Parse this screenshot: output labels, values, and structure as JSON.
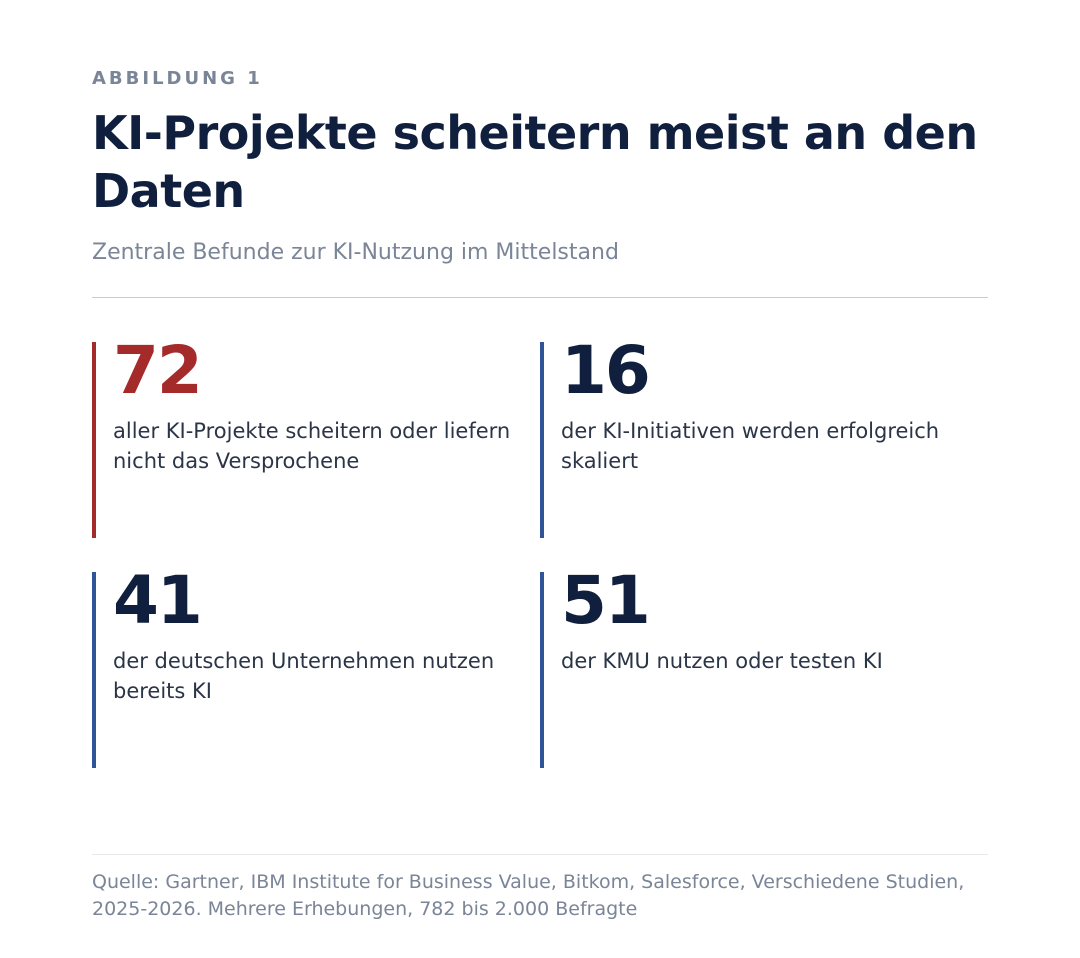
{
  "figure_label": "ABBILDUNG 1",
  "title": "KI-Projekte scheitern meist an den Daten",
  "subtitle": "Zentrale Befunde zur KI-Nutzung im Mittelstand",
  "source": "Quelle: Gartner, IBM Institute for Business Value, Bitkom, Salesforce, Verschiedene Studien, 2025-2026. Mehrere Erhebungen, 782 bis 2.000 Befragte",
  "colors": {
    "accent_red": "#a52a2a",
    "accent_blue": "#2f5597",
    "dark_navy": "#0f1f3d",
    "muted_gray": "#7a8597",
    "body_text": "#2b3548"
  },
  "chart_data": {
    "type": "table",
    "title": "KI-Projekte scheitern meist an den Daten",
    "subtitle": "Zentrale Befunde zur KI-Nutzung im Mittelstand",
    "stats": [
      {
        "value": "72",
        "description": "aller KI-Projekte scheitern oder liefern nicht das Versprochene",
        "value_color": "#a52a2a",
        "bar_color": "#a52a2a"
      },
      {
        "value": "16",
        "description": "der KI-Initiativen werden erfolgreich skaliert",
        "value_color": "#0f1f3d",
        "bar_color": "#2f5597"
      },
      {
        "value": "41",
        "description": "der deutschen Unternehmen nutzen bereits KI",
        "value_color": "#0f1f3d",
        "bar_color": "#2f5597"
      },
      {
        "value": "51",
        "description": "der KMU nutzen oder testen KI",
        "value_color": "#0f1f3d",
        "bar_color": "#2f5597"
      }
    ]
  }
}
